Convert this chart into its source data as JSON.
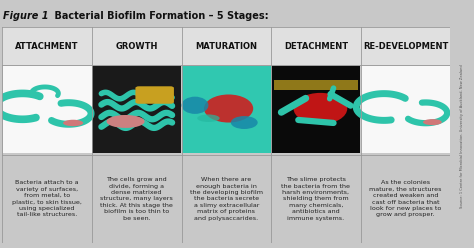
{
  "title_italic": "Figure 1",
  "title_normal": "    Bacterial Biofilm Formation – 5 Stages:",
  "bg_color": "#d0d0d0",
  "table_bg": "#f2f2f2",
  "header_bg": "#e0e0e0",
  "stages": [
    "ATTACHMENT",
    "GROWTH",
    "MATURATION",
    "DETACHMENT",
    "RE-DEVELOPMENT"
  ],
  "descriptions": [
    "Bacteria attach to a\nvariety of surfaces,\nfrom metal, to\nplastic, to skin tissue,\nusing specialized\ntail-like structures.",
    "The cells grow and\ndivide, forming a\ndense matrixed\nstructure, many layers\nthick. At this stage the\nbiofilm is too thin to\nbe seen.",
    "When there are\nenough bacteria in\nthe developing biofilm\nthe bacteria secrete\na slimy extracellular\nmatrix of proteins\nand polysaccarides.",
    "The slime protects\nthe bacteria from the\nharsh environments,\nshielding them from\nmany chemicals,\nantibiotics and\nimmune systems.",
    "As the colonies\nmature, the structures\ncreated weaken and\ncast off bacteria that\nlook for new places to\ngrow and prosper."
  ],
  "img_bg_colors": [
    "#f8f8f8",
    "#1a1a1a",
    "#30c8b0",
    "#0a0a0a",
    "#f8f8f8"
  ],
  "watermark": "Source: 1 Centre for Microbial Innovation, University of Auckland, New Zealand",
  "outer_bg": "#c8c8c8",
  "cell_border": "#999999",
  "header_text_color": "#111111",
  "desc_text_color": "#222222",
  "title_fontsize": 7.0,
  "header_fontsize": 6.0,
  "desc_fontsize": 4.6
}
